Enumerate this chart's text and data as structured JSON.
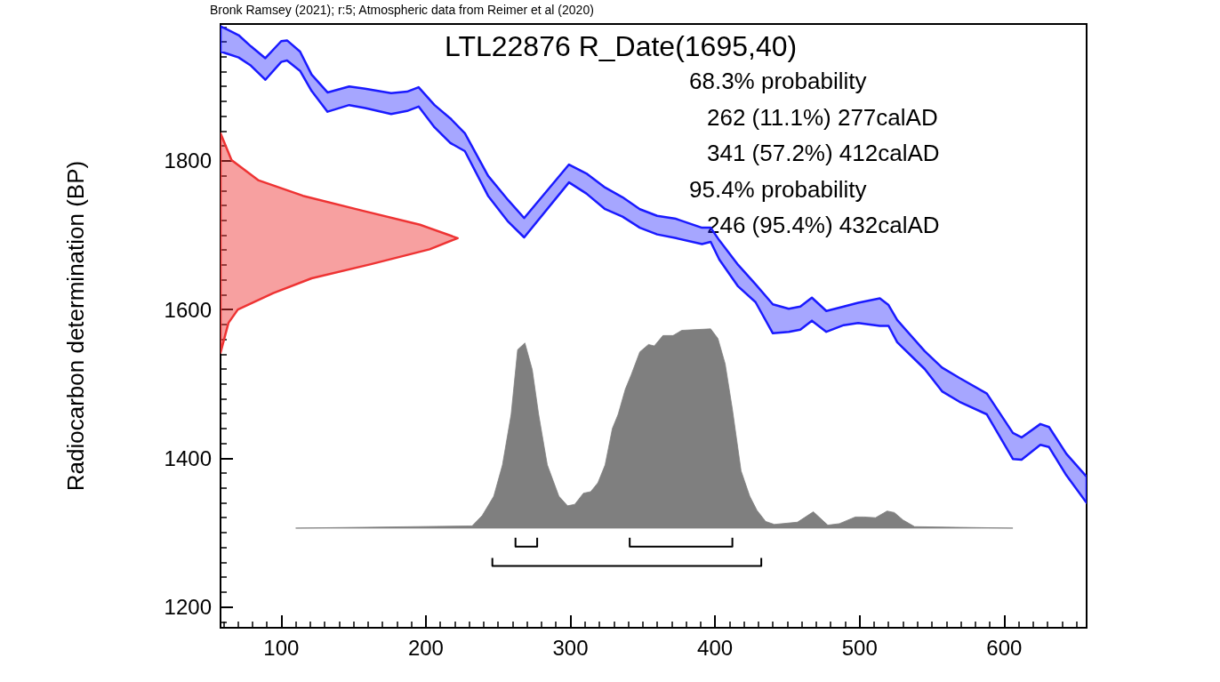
{
  "chart_data": {
    "type": "area",
    "title": "LTL22876 R_Date(1695,40)",
    "ylabel": "Radiocarbon determination (BP)",
    "annotations": [
      "Bronk Ramsey (2021); r:5; Atmospheric data from Reimer et al (2020)",
      "68.3% probability",
      "262 (11.1%) 277calAD",
      "341 (57.2%) 412calAD",
      "95.4% probability",
      "246 (95.4%) 432calAD"
    ],
    "marker": "none",
    "xlim": [
      58,
      657
    ],
    "ylim": [
      1172,
      1984
    ],
    "xticks": [
      {
        "value": 60,
        "label": null
      },
      {
        "value": 70,
        "label": null
      },
      {
        "value": 80,
        "label": null
      },
      {
        "value": 90,
        "label": null
      },
      100,
      {
        "value": 110,
        "label": null
      },
      {
        "value": 120,
        "label": null
      },
      {
        "value": 130,
        "label": null
      },
      {
        "value": 140,
        "label": null
      },
      {
        "value": 150,
        "label": null
      },
      {
        "value": 160,
        "label": null
      },
      {
        "value": 170,
        "label": null
      },
      {
        "value": 180,
        "label": null
      },
      {
        "value": 190,
        "label": null
      },
      200,
      {
        "value": 210,
        "label": null
      },
      {
        "value": 220,
        "label": null
      },
      {
        "value": 230,
        "label": null
      },
      {
        "value": 240,
        "label": null
      },
      {
        "value": 250,
        "label": null
      },
      {
        "value": 260,
        "label": null
      },
      {
        "value": 270,
        "label": null
      },
      {
        "value": 280,
        "label": null
      },
      {
        "value": 290,
        "label": null
      },
      300,
      {
        "value": 310,
        "label": null
      },
      {
        "value": 320,
        "label": null
      },
      {
        "value": 330,
        "label": null
      },
      {
        "value": 340,
        "label": null
      },
      {
        "value": 350,
        "label": null
      },
      {
        "value": 360,
        "label": null
      },
      {
        "value": 370,
        "label": null
      },
      {
        "value": 380,
        "label": null
      },
      {
        "value": 390,
        "label": null
      },
      400,
      {
        "value": 410,
        "label": null
      },
      {
        "value": 420,
        "label": null
      },
      {
        "value": 430,
        "label": null
      },
      {
        "value": 440,
        "label": null
      },
      {
        "value": 450,
        "label": null
      },
      {
        "value": 460,
        "label": null
      },
      {
        "value": 470,
        "label": null
      },
      {
        "value": 480,
        "label": null
      },
      {
        "value": 490,
        "label": null
      },
      500,
      {
        "value": 510,
        "label": null
      },
      {
        "value": 520,
        "label": null
      },
      {
        "value": 530,
        "label": null
      },
      {
        "value": 540,
        "label": null
      },
      {
        "value": 550,
        "label": null
      },
      {
        "value": 560,
        "label": null
      },
      {
        "value": 570,
        "label": null
      },
      {
        "value": 580,
        "label": null
      },
      {
        "value": 590,
        "label": null
      },
      600,
      {
        "value": 610,
        "label": null
      },
      {
        "value": 620,
        "label": null
      },
      {
        "value": 630,
        "label": null
      },
      {
        "value": 640,
        "label": null
      },
      {
        "value": 650,
        "label": null
      }
    ],
    "yticks": [
      {
        "value": 1180,
        "label": null
      },
      1200,
      {
        "value": 1220,
        "label": null
      },
      {
        "value": 1240,
        "label": null
      },
      {
        "value": 1260,
        "label": null
      },
      {
        "value": 1280,
        "label": null
      },
      {
        "value": 1300,
        "label": null
      },
      {
        "value": 1320,
        "label": null
      },
      {
        "value": 1340,
        "label": null
      },
      {
        "value": 1360,
        "label": null
      },
      {
        "value": 1380,
        "label": null
      },
      1400,
      {
        "value": 1420,
        "label": null
      },
      {
        "value": 1440,
        "label": null
      },
      {
        "value": 1460,
        "label": null
      },
      {
        "value": 1480,
        "label": null
      },
      {
        "value": 1500,
        "label": null
      },
      {
        "value": 1520,
        "label": null
      },
      {
        "value": 1540,
        "label": null
      },
      {
        "value": 1560,
        "label": null
      },
      {
        "value": 1580,
        "label": null
      },
      1600,
      {
        "value": 1620,
        "label": null
      },
      {
        "value": 1640,
        "label": null
      },
      {
        "value": 1660,
        "label": null
      },
      {
        "value": 1680,
        "label": null
      },
      {
        "value": 1700,
        "label": null
      },
      {
        "value": 1720,
        "label": null
      },
      {
        "value": 1740,
        "label": null
      },
      {
        "value": 1760,
        "label": null
      },
      {
        "value": 1780,
        "label": null
      },
      1800,
      {
        "value": 1820,
        "label": null
      },
      {
        "value": 1840,
        "label": null
      },
      {
        "value": 1860,
        "label": null
      },
      {
        "value": 1880,
        "label": null
      },
      {
        "value": 1900,
        "label": null
      },
      {
        "value": 1920,
        "label": null
      },
      {
        "value": 1940,
        "label": null
      },
      {
        "value": 1960,
        "label": null
      },
      {
        "value": 1980,
        "label": null
      }
    ],
    "series": [
      {
        "color": "#1a1aff",
        "x": [
          58,
          70.5,
          79,
          89,
          100,
          104,
          113,
          121,
          132,
          147,
          158,
          176,
          187,
          195,
          206,
          217,
          227,
          243,
          257,
          268,
          299,
          311,
          324,
          336,
          348,
          360,
          373,
          391,
          397,
          403,
          416,
          428,
          440,
          451,
          459,
          467,
          477,
          489,
          499,
          514,
          520,
          526,
          545,
          557,
          569,
          588,
          606,
          612,
          625,
          631,
          643,
          657,
          657,
          643,
          631,
          625,
          612,
          606,
          588,
          569,
          557,
          545,
          526,
          520,
          514,
          499,
          489,
          477,
          467,
          459,
          451,
          440,
          428,
          416,
          403,
          397,
          391,
          373,
          360,
          348,
          336,
          324,
          311,
          299,
          268,
          257,
          243,
          227,
          217,
          206,
          195,
          187,
          176,
          158,
          147,
          132,
          121,
          113,
          104,
          100,
          89,
          79,
          70.5,
          58
        ],
        "values": [
          1981,
          1969,
          1954,
          1938,
          1961,
          1962,
          1947,
          1916,
          1892,
          1900,
          1897,
          1891,
          1893,
          1899,
          1875,
          1857,
          1837,
          1780,
          1747,
          1723,
          1795,
          1783,
          1764,
          1751,
          1735,
          1726,
          1722,
          1710,
          1710,
          1693,
          1660,
          1634,
          1607,
          1601,
          1604,
          1616,
          1598,
          1604,
          1609,
          1615,
          1606,
          1586,
          1544,
          1522,
          1508,
          1487,
          1434,
          1428,
          1446,
          1442,
          1406,
          1375,
          1340,
          1377,
          1415,
          1418,
          1398,
          1399,
          1459,
          1476,
          1490,
          1520,
          1556,
          1578,
          1578,
          1582,
          1579,
          1570,
          1585,
          1573,
          1570,
          1568,
          1610,
          1631,
          1667,
          1691,
          1688,
          1696,
          1701,
          1710,
          1725,
          1735,
          1756,
          1771,
          1697,
          1718,
          1753,
          1813,
          1824,
          1845,
          1873,
          1867,
          1863,
          1871,
          1875,
          1866,
          1894,
          1921,
          1935,
          1933,
          1909,
          1928,
          1939,
          1947
        ]
      },
      {
        "color": "#ee3333",
        "x": [
          58,
          63.5,
          70,
          94.5,
          121,
          162,
          202.6,
          222,
          196,
          156,
          115,
          84,
          65.6,
          58
        ],
        "values": [
          1542,
          1582,
          1600,
          1622,
          1642,
          1661,
          1681,
          1696,
          1714,
          1733,
          1753,
          1774,
          1801,
          1837
        ]
      },
      {
        "color": "#7f7f7f",
        "x": [
          110,
          232,
          239,
          247,
          253,
          259,
          263.5,
          268.5,
          273.6,
          278,
          284,
          292,
          298,
          303,
          309,
          314,
          319,
          324,
          329,
          333,
          338,
          342,
          348,
          354,
          358,
          364,
          371,
          377,
          397,
          402,
          407,
          412,
          418,
          424,
          429,
          435,
          441,
          457,
          468,
          478,
          486,
          497,
          503,
          511,
          519,
          524,
          530,
          538,
          606
        ],
        "values": [
          1306,
          1309,
          1323,
          1349,
          1391,
          1459,
          1546,
          1555,
          1519,
          1459,
          1391,
          1349,
          1336,
          1338,
          1353,
          1355,
          1367,
          1391,
          1440,
          1459,
          1493,
          1512,
          1543,
          1553,
          1551,
          1565,
          1565,
          1572,
          1574,
          1561,
          1527,
          1466,
          1383,
          1349,
          1330,
          1315,
          1311,
          1314,
          1328,
          1310,
          1312,
          1321,
          1321,
          1320,
          1329,
          1327,
          1317,
          1308,
          1306
        ]
      },
      {
        "type": "line",
        "color": "#000000",
        "x": [
          262,
          262,
          277,
          277
        ],
        "values": [
          1293,
          1281,
          1281,
          1293
        ]
      },
      {
        "type": "line",
        "color": "#000000",
        "x": [
          341,
          341,
          412,
          412
        ],
        "values": [
          1293,
          1281,
          1281,
          1293
        ]
      },
      {
        "type": "line",
        "color": "#000000",
        "x": [
          246,
          246,
          432,
          432
        ],
        "values": [
          1266,
          1255,
          1255,
          1266
        ]
      }
    ]
  }
}
